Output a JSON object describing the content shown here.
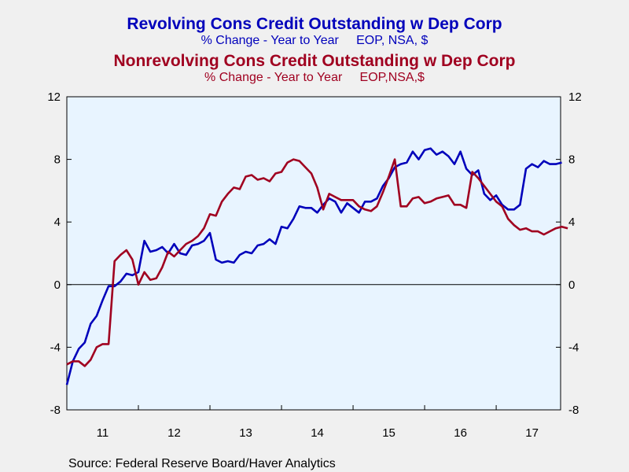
{
  "titles": [
    {
      "title": "Revolving Cons Credit Outstanding w Dep Corp",
      "subtitle": "% Change - Year to Year     EOP, NSA, $",
      "color": "#0000bb"
    },
    {
      "title": "Nonrevolving Cons Credit Outstanding w Dep Corp",
      "subtitle": "% Change - Year to Year     EOP,NSA,$",
      "color": "#a00020"
    }
  ],
  "source": "Source:  Federal Reserve Board/Haver Analytics",
  "chart_data": {
    "type": "line",
    "plot_background": "#e8f4ff",
    "grid": false,
    "zero_line": true,
    "ylim": [
      -8,
      12
    ],
    "yticks": [
      -8,
      -4,
      0,
      4,
      8,
      12
    ],
    "ytick_labels": [
      "-8",
      "-4",
      "0",
      "4",
      "8",
      "12"
    ],
    "xlim": [
      2011.0,
      2017.9
    ],
    "xtick_labels": [
      "11",
      "12",
      "13",
      "14",
      "15",
      "16",
      "17"
    ],
    "series": [
      {
        "color": "#0000bb",
        "x_start": 2011.0,
        "x_step": 0.08333,
        "values": [
          -6.4,
          -4.9,
          -4.1,
          -3.7,
          -2.5,
          -2.0,
          -1.0,
          -0.1,
          -0.1,
          0.2,
          0.7,
          0.6,
          0.8,
          2.8,
          2.1,
          2.2,
          2.4,
          2.0,
          2.6,
          2.0,
          1.9,
          2.5,
          2.6,
          2.8,
          3.3,
          1.6,
          1.4,
          1.5,
          1.4,
          1.9,
          2.1,
          2.0,
          2.5,
          2.6,
          2.9,
          2.6,
          3.7,
          3.6,
          4.2,
          5.0,
          4.9,
          4.9,
          4.6,
          5.1,
          5.5,
          5.3,
          4.6,
          5.2,
          4.9,
          4.6,
          5.3,
          5.3,
          5.5,
          6.3,
          6.8,
          7.5,
          7.7,
          7.8,
          8.5,
          8.0,
          8.6,
          8.7,
          8.3,
          8.5,
          8.2,
          7.7,
          8.5,
          7.4,
          7.0,
          7.3,
          5.8,
          5.4,
          5.7,
          5.1,
          4.8,
          4.8,
          5.1,
          7.4,
          7.7,
          7.5,
          7.9,
          7.7,
          7.7,
          7.8
        ]
      },
      {
        "color": "#a00020",
        "x_start": 2011.0,
        "x_step": 0.08333,
        "values": [
          -5.1,
          -4.9,
          -4.9,
          -5.2,
          -4.8,
          -4.0,
          -3.8,
          -3.8,
          1.5,
          1.9,
          2.2,
          1.6,
          0.0,
          0.8,
          0.3,
          0.4,
          1.1,
          2.1,
          1.8,
          2.2,
          2.6,
          2.8,
          3.1,
          3.6,
          4.5,
          4.4,
          5.3,
          5.8,
          6.2,
          6.1,
          6.9,
          7.0,
          6.7,
          6.8,
          6.6,
          7.1,
          7.2,
          7.8,
          8.0,
          7.9,
          7.5,
          7.1,
          6.2,
          4.8,
          5.8,
          5.6,
          5.4,
          5.4,
          5.4,
          5.0,
          4.8,
          4.7,
          5.0,
          5.9,
          6.9,
          8.0,
          5.0,
          5.0,
          5.5,
          5.6,
          5.2,
          5.3,
          5.5,
          5.6,
          5.7,
          5.1,
          5.1,
          4.9,
          7.2,
          6.8,
          6.3,
          5.8,
          5.3,
          5.0,
          4.2,
          3.8,
          3.5,
          3.6,
          3.4,
          3.4,
          3.2,
          3.4,
          3.6,
          3.7,
          3.6
        ]
      }
    ]
  }
}
